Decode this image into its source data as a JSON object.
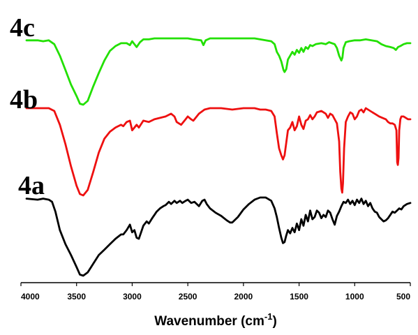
{
  "chart_data": {
    "type": "line",
    "title": "",
    "xlabel": "Wavenumber (cm",
    "xlabel_sup": "-1",
    "xlabel_close": ")",
    "ylabel": "",
    "xlim": [
      4000,
      500
    ],
    "x_reversed": true,
    "y_axis_visible": false,
    "grid": false,
    "legend": "series labels placed above traces, left",
    "x_ticks": [
      4000,
      3500,
      3000,
      2500,
      2000,
      1500,
      1000,
      500
    ],
    "x_tick_labels": [
      "4000",
      "3500",
      "3000",
      "2500",
      "2000",
      "1500",
      "1000",
      "500"
    ],
    "series": [
      {
        "name": "4c",
        "color": "#22e000",
        "points": [
          [
            3950,
            96
          ],
          [
            3850,
            96
          ],
          [
            3800,
            95
          ],
          [
            3750,
            96
          ],
          [
            3700,
            92
          ],
          [
            3650,
            80
          ],
          [
            3600,
            65
          ],
          [
            3550,
            50
          ],
          [
            3500,
            38
          ],
          [
            3470,
            30
          ],
          [
            3440,
            29
          ],
          [
            3400,
            33
          ],
          [
            3350,
            48
          ],
          [
            3300,
            62
          ],
          [
            3250,
            75
          ],
          [
            3200,
            85
          ],
          [
            3150,
            90
          ],
          [
            3100,
            93
          ],
          [
            3050,
            93
          ],
          [
            3020,
            91
          ],
          [
            3000,
            95
          ],
          [
            2980,
            92
          ],
          [
            2960,
            89
          ],
          [
            2930,
            94
          ],
          [
            2900,
            97
          ],
          [
            2850,
            97
          ],
          [
            2800,
            98
          ],
          [
            2700,
            98
          ],
          [
            2600,
            98
          ],
          [
            2500,
            98
          ],
          [
            2450,
            97
          ],
          [
            2380,
            96
          ],
          [
            2360,
            91
          ],
          [
            2340,
            96
          ],
          [
            2300,
            98
          ],
          [
            2200,
            98
          ],
          [
            2100,
            98
          ],
          [
            2000,
            98
          ],
          [
            1900,
            98
          ],
          [
            1850,
            97
          ],
          [
            1800,
            96
          ],
          [
            1750,
            95
          ],
          [
            1720,
            92
          ],
          [
            1700,
            84
          ],
          [
            1680,
            80
          ],
          [
            1660,
            74
          ],
          [
            1640,
            65
          ],
          [
            1630,
            63
          ],
          [
            1615,
            66
          ],
          [
            1600,
            76
          ],
          [
            1580,
            80
          ],
          [
            1560,
            84
          ],
          [
            1540,
            81
          ],
          [
            1520,
            86
          ],
          [
            1500,
            83
          ],
          [
            1480,
            88
          ],
          [
            1460,
            84
          ],
          [
            1440,
            89
          ],
          [
            1420,
            87
          ],
          [
            1400,
            91
          ],
          [
            1380,
            90
          ],
          [
            1350,
            92
          ],
          [
            1300,
            93
          ],
          [
            1260,
            92
          ],
          [
            1230,
            94
          ],
          [
            1180,
            92
          ],
          [
            1160,
            88
          ],
          [
            1140,
            80
          ],
          [
            1120,
            75
          ],
          [
            1110,
            78
          ],
          [
            1100,
            88
          ],
          [
            1080,
            94
          ],
          [
            1050,
            95
          ],
          [
            1000,
            96
          ],
          [
            950,
            96
          ],
          [
            900,
            97
          ],
          [
            850,
            96
          ],
          [
            800,
            95
          ],
          [
            760,
            92
          ],
          [
            720,
            90
          ],
          [
            680,
            89
          ],
          [
            650,
            88
          ],
          [
            630,
            86
          ],
          [
            610,
            89
          ],
          [
            590,
            90
          ],
          [
            560,
            92
          ],
          [
            530,
            93
          ],
          [
            500,
            93
          ]
        ]
      },
      {
        "name": "4b",
        "color": "#ee1010",
        "points": [
          [
            3950,
            94
          ],
          [
            3850,
            94
          ],
          [
            3800,
            94
          ],
          [
            3750,
            94
          ],
          [
            3700,
            92
          ],
          [
            3650,
            82
          ],
          [
            3600,
            68
          ],
          [
            3550,
            52
          ],
          [
            3500,
            38
          ],
          [
            3470,
            32
          ],
          [
            3440,
            31
          ],
          [
            3400,
            35
          ],
          [
            3350,
            48
          ],
          [
            3300,
            62
          ],
          [
            3250,
            72
          ],
          [
            3200,
            77
          ],
          [
            3150,
            80
          ],
          [
            3100,
            82
          ],
          [
            3080,
            81
          ],
          [
            3050,
            84
          ],
          [
            3020,
            85
          ],
          [
            3000,
            78
          ],
          [
            2980,
            80
          ],
          [
            2960,
            82
          ],
          [
            2940,
            80
          ],
          [
            2900,
            85
          ],
          [
            2850,
            84
          ],
          [
            2800,
            86
          ],
          [
            2750,
            87
          ],
          [
            2700,
            88
          ],
          [
            2650,
            90
          ],
          [
            2620,
            88
          ],
          [
            2600,
            84
          ],
          [
            2560,
            82
          ],
          [
            2520,
            86
          ],
          [
            2500,
            88
          ],
          [
            2470,
            86
          ],
          [
            2450,
            85
          ],
          [
            2420,
            88
          ],
          [
            2400,
            90
          ],
          [
            2350,
            93
          ],
          [
            2300,
            94
          ],
          [
            2200,
            94
          ],
          [
            2100,
            93
          ],
          [
            2000,
            94
          ],
          [
            1900,
            94
          ],
          [
            1850,
            93
          ],
          [
            1800,
            93
          ],
          [
            1750,
            92
          ],
          [
            1720,
            88
          ],
          [
            1700,
            76
          ],
          [
            1680,
            65
          ],
          [
            1660,
            60
          ],
          [
            1645,
            57
          ],
          [
            1630,
            60
          ],
          [
            1615,
            69
          ],
          [
            1600,
            78
          ],
          [
            1580,
            80
          ],
          [
            1560,
            84
          ],
          [
            1540,
            78
          ],
          [
            1520,
            81
          ],
          [
            1500,
            88
          ],
          [
            1480,
            82
          ],
          [
            1460,
            79
          ],
          [
            1440,
            85
          ],
          [
            1420,
            86
          ],
          [
            1400,
            89
          ],
          [
            1380,
            86
          ],
          [
            1360,
            88
          ],
          [
            1340,
            91
          ],
          [
            1300,
            92
          ],
          [
            1260,
            90
          ],
          [
            1240,
            87
          ],
          [
            1220,
            90
          ],
          [
            1200,
            89
          ],
          [
            1180,
            86
          ],
          [
            1160,
            83
          ],
          [
            1140,
            70
          ],
          [
            1130,
            48
          ],
          [
            1120,
            36
          ],
          [
            1112,
            33
          ],
          [
            1105,
            40
          ],
          [
            1095,
            65
          ],
          [
            1080,
            84
          ],
          [
            1060,
            88
          ],
          [
            1040,
            91
          ],
          [
            1020,
            90
          ],
          [
            1000,
            86
          ],
          [
            980,
            88
          ],
          [
            960,
            92
          ],
          [
            940,
            93
          ],
          [
            920,
            91
          ],
          [
            900,
            94
          ],
          [
            880,
            93
          ],
          [
            860,
            92
          ],
          [
            840,
            91
          ],
          [
            820,
            90
          ],
          [
            800,
            89
          ],
          [
            780,
            88
          ],
          [
            750,
            87
          ],
          [
            720,
            86
          ],
          [
            700,
            84
          ],
          [
            680,
            83
          ],
          [
            660,
            83
          ],
          [
            640,
            82
          ],
          [
            625,
            78
          ],
          [
            618,
            55
          ],
          [
            612,
            53
          ],
          [
            606,
            58
          ],
          [
            600,
            78
          ],
          [
            590,
            86
          ],
          [
            580,
            88
          ],
          [
            560,
            88
          ],
          [
            540,
            87
          ],
          [
            520,
            86
          ],
          [
            500,
            86
          ]
        ]
      },
      {
        "name": "4a",
        "color": "#000000",
        "points": [
          [
            3950,
            97
          ],
          [
            3850,
            96
          ],
          [
            3800,
            97
          ],
          [
            3750,
            96
          ],
          [
            3720,
            94
          ],
          [
            3690,
            85
          ],
          [
            3650,
            68
          ],
          [
            3600,
            55
          ],
          [
            3550,
            45
          ],
          [
            3500,
            34
          ],
          [
            3470,
            27
          ],
          [
            3440,
            26
          ],
          [
            3400,
            29
          ],
          [
            3350,
            37
          ],
          [
            3300,
            45
          ],
          [
            3250,
            50
          ],
          [
            3200,
            55
          ],
          [
            3150,
            60
          ],
          [
            3100,
            64
          ],
          [
            3080,
            64
          ],
          [
            3050,
            68
          ],
          [
            3020,
            73
          ],
          [
            3000,
            66
          ],
          [
            2980,
            68
          ],
          [
            2960,
            61
          ],
          [
            2940,
            60
          ],
          [
            2920,
            66
          ],
          [
            2900,
            72
          ],
          [
            2870,
            76
          ],
          [
            2850,
            74
          ],
          [
            2820,
            79
          ],
          [
            2800,
            82
          ],
          [
            2780,
            85
          ],
          [
            2750,
            88
          ],
          [
            2720,
            90
          ],
          [
            2700,
            91
          ],
          [
            2670,
            94
          ],
          [
            2650,
            92
          ],
          [
            2620,
            95
          ],
          [
            2600,
            93
          ],
          [
            2570,
            95
          ],
          [
            2550,
            93
          ],
          [
            2520,
            95
          ],
          [
            2500,
            96
          ],
          [
            2470,
            93
          ],
          [
            2440,
            94
          ],
          [
            2420,
            92
          ],
          [
            2400,
            90
          ],
          [
            2370,
            95
          ],
          [
            2350,
            96
          ],
          [
            2330,
            92
          ],
          [
            2300,
            88
          ],
          [
            2250,
            84
          ],
          [
            2200,
            81
          ],
          [
            2150,
            77
          ],
          [
            2120,
            75
          ],
          [
            2100,
            75
          ],
          [
            2050,
            80
          ],
          [
            2000,
            87
          ],
          [
            1950,
            92
          ],
          [
            1900,
            96
          ],
          [
            1850,
            98
          ],
          [
            1800,
            98
          ],
          [
            1750,
            95
          ],
          [
            1720,
            88
          ],
          [
            1700,
            80
          ],
          [
            1680,
            70
          ],
          [
            1660,
            61
          ],
          [
            1645,
            56
          ],
          [
            1630,
            57
          ],
          [
            1615,
            63
          ],
          [
            1600,
            68
          ],
          [
            1580,
            65
          ],
          [
            1560,
            70
          ],
          [
            1540,
            66
          ],
          [
            1520,
            74
          ],
          [
            1500,
            68
          ],
          [
            1480,
            78
          ],
          [
            1460,
            72
          ],
          [
            1440,
            82
          ],
          [
            1420,
            76
          ],
          [
            1400,
            86
          ],
          [
            1380,
            78
          ],
          [
            1360,
            80
          ],
          [
            1340,
            86
          ],
          [
            1320,
            84
          ],
          [
            1300,
            79
          ],
          [
            1280,
            82
          ],
          [
            1260,
            80
          ],
          [
            1240,
            86
          ],
          [
            1220,
            84
          ],
          [
            1200,
            78
          ],
          [
            1180,
            73
          ],
          [
            1160,
            81
          ],
          [
            1140,
            85
          ],
          [
            1120,
            90
          ],
          [
            1100,
            94
          ],
          [
            1080,
            93
          ],
          [
            1060,
            96
          ],
          [
            1040,
            92
          ],
          [
            1020,
            95
          ],
          [
            1000,
            91
          ],
          [
            980,
            96
          ],
          [
            960,
            93
          ],
          [
            940,
            97
          ],
          [
            920,
            92
          ],
          [
            900,
            95
          ],
          [
            880,
            90
          ],
          [
            860,
            93
          ],
          [
            840,
            88
          ],
          [
            820,
            85
          ],
          [
            800,
            84
          ],
          [
            780,
            80
          ],
          [
            760,
            78
          ],
          [
            740,
            76
          ],
          [
            720,
            77
          ],
          [
            700,
            79
          ],
          [
            680,
            82
          ],
          [
            660,
            85
          ],
          [
            640,
            84
          ],
          [
            620,
            86
          ],
          [
            600,
            88
          ],
          [
            580,
            87
          ],
          [
            560,
            90
          ],
          [
            530,
            92
          ],
          [
            500,
            93
          ]
        ]
      }
    ]
  }
}
